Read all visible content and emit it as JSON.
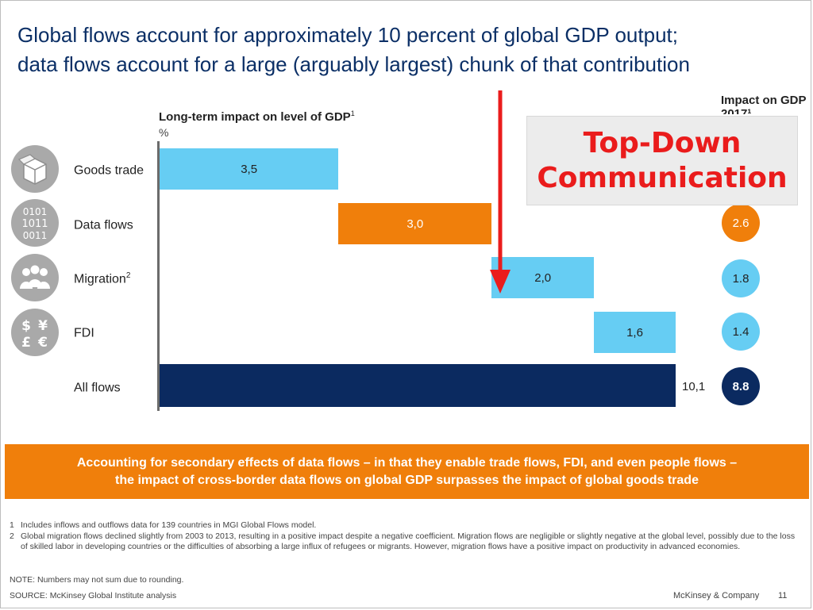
{
  "slide": {
    "title_line1": "Global flows account for approximately 10 percent of global GDP output;",
    "title_line2": "data flows account for a large (arguably largest) chunk of that contribution",
    "impact_header": "Impact on GDP 2017¹",
    "overlay_line1": "Top-Down",
    "overlay_line2": "Communication",
    "banner_line1": "Accounting for secondary effects of data flows – in that they enable trade flows, FDI, and even people flows –",
    "banner_line2": "the impact of cross-border data flows on global GDP surpasses the impact of global goods trade",
    "footnotes": [
      {
        "num": "1",
        "text": "Includes inflows and outflows data for 139 countries in MGI Global Flows model."
      },
      {
        "num": "2",
        "text": "Global migration flows declined slightly from 2003 to 2013, resulting in a positive impact despite a negative coefficient. Migration flows are negligible or slightly negative at the global level, possibly due to the loss of skilled labor in developing countries or the difficulties of absorbing a large influx of refugees or migrants. However, migration flows have a positive impact on productivity in advanced economies."
      }
    ],
    "note": "NOTE: Numbers may not sum due to rounding.",
    "source": "SOURCE: McKinsey Global Institute analysis",
    "company": "McKinsey & Company",
    "page": "11"
  },
  "icons": [
    "box-icon",
    "binary-data-icon",
    "people-icon",
    "currency-icon"
  ],
  "chart_data": {
    "type": "bar",
    "subtype": "waterfall",
    "title": "Long-term impact on level of GDP",
    "title_sup": "1",
    "unit": "%",
    "categories": [
      {
        "label": "Goods trade",
        "sup": ""
      },
      {
        "label": "Data flows",
        "sup": ""
      },
      {
        "label": "Migration",
        "sup": "2"
      },
      {
        "label": "FDI",
        "sup": ""
      },
      {
        "label": "All flows",
        "sup": ""
      }
    ],
    "values": [
      3.5,
      3.0,
      2.0,
      1.6,
      10.1
    ],
    "value_labels": [
      "3,5",
      "3,0",
      "2,0",
      "1,6",
      "10,1"
    ],
    "colors": [
      "#66cdf3",
      "#f07f0b",
      "#66cdf3",
      "#66cdf3",
      "#0b2a60"
    ],
    "xlim": [
      0,
      12.12
    ],
    "impact_2017": {
      "values": [
        "2.6",
        "1.8",
        "1.4",
        "8.8"
      ],
      "colors": [
        "#f07f0b",
        "#66cdf3",
        "#66cdf3",
        "#0b2a60"
      ]
    }
  }
}
